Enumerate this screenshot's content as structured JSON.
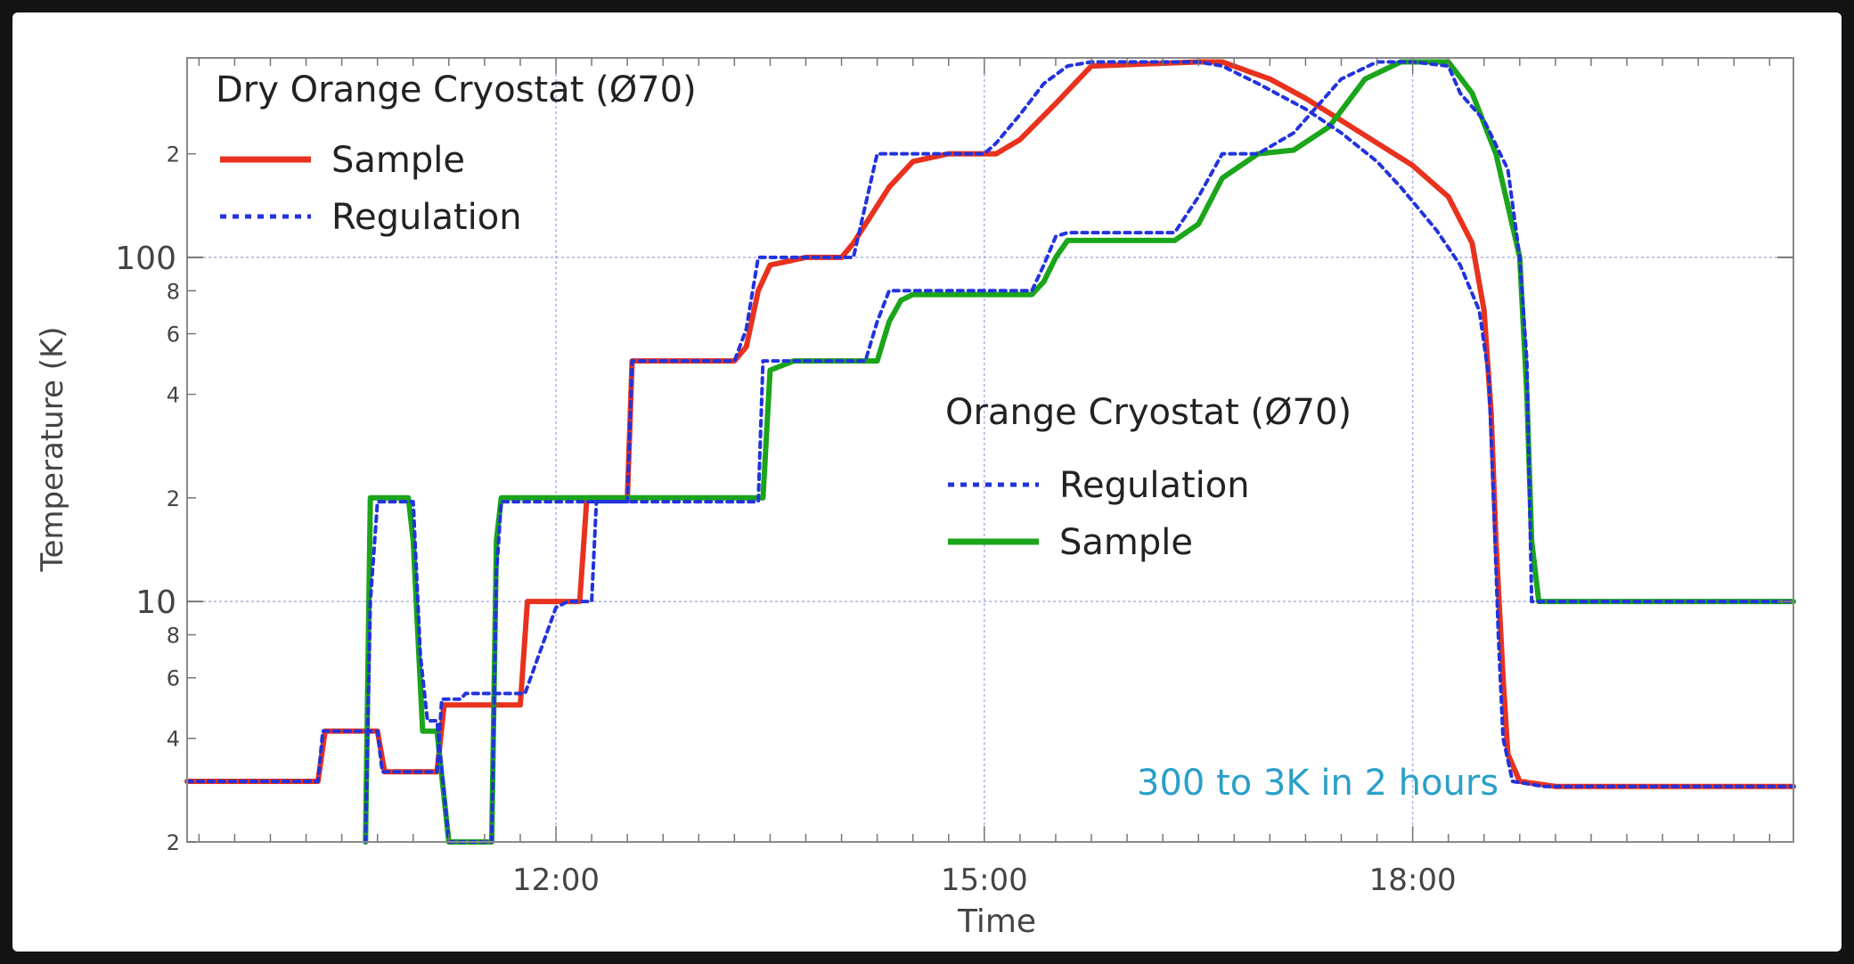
{
  "chart_data": {
    "type": "line",
    "xlabel": "Time",
    "ylabel": "Temperature (K)",
    "yscale": "log",
    "ylim": [
      2,
      380
    ],
    "xlim": [
      "09:25",
      "20:40"
    ],
    "x_ticks": [
      "12:00",
      "15:00",
      "18:00"
    ],
    "y_major_tick_labels": [
      "10",
      "100"
    ],
    "y_minor_tick_labels": [
      "2",
      "4",
      "6",
      "8",
      "2",
      "4",
      "6",
      "8",
      "2"
    ],
    "grid": true,
    "annotation": "300 to 3K in 2 hours",
    "colors": {
      "red": "#e8321e",
      "green": "#1aa51a",
      "blue": "#2233dd",
      "annotation": "#2aa0c8",
      "grid": "#aab0e6"
    },
    "legends": [
      {
        "title": "Dry Orange Cryostat (Ø70)",
        "position": "top-left",
        "entries": [
          {
            "label": "Sample",
            "style": "solid",
            "color": "#e8321e"
          },
          {
            "label": "Regulation",
            "style": "dotted",
            "color": "#2233dd"
          }
        ]
      },
      {
        "title": "Orange Cryostat (Ø70)",
        "position": "center-right",
        "entries": [
          {
            "label": "Regulation",
            "style": "dotted",
            "color": "#2233dd"
          },
          {
            "label": "Sample",
            "style": "solid",
            "color": "#1aa51a"
          }
        ]
      }
    ],
    "series": [
      {
        "key": "dry_regulation",
        "color": "#2233dd",
        "style": "dotted",
        "x": [
          "09:25",
          "10:20",
          "10:22",
          "10:45",
          "10:47",
          "11:10",
          "11:12",
          "11:20",
          "11:22",
          "11:45",
          "11:47",
          "12:00",
          "12:05",
          "12:15",
          "12:17",
          "12:30",
          "12:32",
          "12:45",
          "12:52",
          "13:15",
          "13:20",
          "13:25",
          "13:28",
          "13:40",
          "13:55",
          "14:00",
          "14:05",
          "14:15",
          "14:25",
          "14:30",
          "14:45",
          "15:00",
          "15:05",
          "15:15",
          "15:25",
          "15:35",
          "15:45",
          "16:30",
          "16:40",
          "16:55",
          "17:15",
          "17:30",
          "17:45",
          "17:55",
          "18:10",
          "18:20",
          "18:28",
          "18:32",
          "18:34",
          "18:36",
          "18:38",
          "18:42",
          "18:55",
          "19:30",
          "20:40"
        ],
        "y": [
          3.0,
          3.0,
          4.2,
          4.2,
          3.2,
          3.2,
          5.2,
          5.2,
          5.4,
          5.4,
          5.4,
          9.6,
          10.0,
          10.0,
          19.5,
          19.5,
          50,
          50,
          50,
          50,
          62,
          100,
          100,
          100,
          100,
          100,
          100,
          200,
          200,
          200,
          200,
          200,
          215,
          260,
          320,
          360,
          370,
          370,
          360,
          320,
          270,
          230,
          190,
          160,
          120,
          95,
          70,
          45,
          20,
          8,
          4,
          3,
          2.9,
          2.9,
          2.9
        ]
      },
      {
        "key": "dry_sample",
        "color": "#e8321e",
        "style": "solid",
        "x": [
          "09:25",
          "10:20",
          "10:23",
          "10:45",
          "10:48",
          "11:10",
          "11:13",
          "11:45",
          "11:48",
          "12:10",
          "12:13",
          "12:30",
          "12:32",
          "12:45",
          "12:50",
          "13:15",
          "13:20",
          "13:25",
          "13:30",
          "13:45",
          "13:55",
          "14:00",
          "14:05",
          "14:20",
          "14:30",
          "14:45",
          "15:00",
          "15:05",
          "15:15",
          "15:30",
          "15:45",
          "16:30",
          "16:40",
          "17:00",
          "17:15",
          "17:30",
          "17:45",
          "18:00",
          "18:15",
          "18:25",
          "18:30",
          "18:33",
          "18:35",
          "18:38",
          "18:40",
          "18:45",
          "19:00",
          "20:40"
        ],
        "y": [
          3.0,
          3.0,
          4.2,
          4.2,
          3.2,
          3.2,
          5.0,
          5.0,
          10.0,
          10.0,
          20,
          20,
          50,
          50,
          50,
          50,
          55,
          80,
          95,
          100,
          100,
          100,
          110,
          160,
          190,
          200,
          200,
          200,
          220,
          280,
          360,
          370,
          370,
          330,
          290,
          250,
          215,
          185,
          150,
          110,
          70,
          35,
          15,
          6,
          3.6,
          3.0,
          2.9,
          2.9
        ]
      },
      {
        "key": "orange_regulation",
        "color": "#2233dd",
        "style": "dotted",
        "x": [
          "10:40",
          "10:42",
          "10:45",
          "10:52",
          "10:55",
          "11:00",
          "11:03",
          "11:06",
          "11:10",
          "11:15",
          "11:20",
          "11:25",
          "11:30",
          "11:33",
          "11:35",
          "11:37",
          "12:05",
          "12:30",
          "13:00",
          "13:25",
          "13:27",
          "13:30",
          "13:35",
          "13:50",
          "14:05",
          "14:10",
          "14:15",
          "14:20",
          "14:25",
          "14:30",
          "14:50",
          "15:10",
          "15:20",
          "15:25",
          "15:30",
          "15:35",
          "15:45",
          "16:00",
          "16:15",
          "16:20",
          "16:30",
          "16:40",
          "16:55",
          "17:10",
          "17:30",
          "17:45",
          "18:00",
          "18:15",
          "18:20",
          "18:30",
          "18:40",
          "18:45",
          "18:48",
          "18:50",
          "19:05",
          "19:20",
          "20:40"
        ],
        "y": [
          2,
          10,
          19.5,
          19.5,
          19.5,
          19.5,
          7.0,
          4.5,
          4.5,
          2,
          2,
          2,
          2,
          2,
          12,
          19.5,
          19.5,
          19.5,
          19.5,
          19.5,
          50,
          50,
          50,
          50,
          50,
          50,
          65,
          80,
          80,
          80,
          80,
          80,
          80,
          95,
          115,
          118,
          118,
          118,
          118,
          118,
          150,
          200,
          200,
          230,
          330,
          370,
          370,
          360,
          300,
          250,
          180,
          100,
          50,
          10,
          10,
          10,
          10
        ]
      },
      {
        "key": "orange_sample",
        "color": "#1aa51a",
        "style": "solid",
        "x": [
          "10:40",
          "10:42",
          "10:45",
          "10:55",
          "10:58",
          "11:00",
          "11:04",
          "11:10",
          "11:15",
          "11:20",
          "11:25",
          "11:30",
          "11:33",
          "11:35",
          "11:37",
          "12:00",
          "12:30",
          "13:00",
          "13:25",
          "13:27",
          "13:30",
          "13:40",
          "13:50",
          "14:00",
          "14:10",
          "14:15",
          "14:20",
          "14:25",
          "14:30",
          "15:00",
          "15:15",
          "15:20",
          "15:25",
          "15:30",
          "15:35",
          "15:45",
          "16:00",
          "16:10",
          "16:20",
          "16:30",
          "16:40",
          "16:55",
          "17:10",
          "17:25",
          "17:40",
          "17:55",
          "18:00",
          "18:15",
          "18:25",
          "18:35",
          "18:45",
          "18:48",
          "18:50",
          "18:53",
          "19:00",
          "19:30",
          "20:40"
        ],
        "y": [
          2,
          20,
          20,
          20,
          20,
          15,
          4.2,
          4.2,
          2,
          2,
          2,
          2,
          2,
          15,
          20,
          20,
          20,
          20,
          20,
          20,
          47,
          50,
          50,
          50,
          50,
          50,
          65,
          75,
          78,
          78,
          78,
          78,
          85,
          100,
          112,
          112,
          112,
          112,
          112,
          125,
          170,
          200,
          205,
          240,
          330,
          370,
          370,
          370,
          300,
          200,
          100,
          40,
          15,
          10,
          10,
          10,
          10
        ]
      }
    ]
  }
}
